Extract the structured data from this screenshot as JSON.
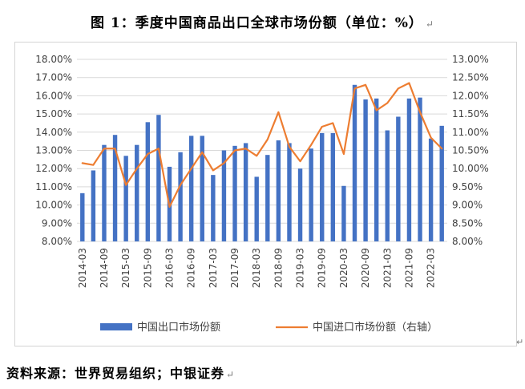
{
  "title": "图 1：季度中国商品出口全球市场份额（单位：%）",
  "source": "资料来源：世界贸易组织；中银证券",
  "edit_mark": "↵",
  "chart_data": {
    "type": "bar+line",
    "categories": [
      "2014-03",
      "2014-06",
      "2014-09",
      "2014-12",
      "2015-03",
      "2015-06",
      "2015-09",
      "2015-12",
      "2016-03",
      "2016-06",
      "2016-09",
      "2016-12",
      "2017-03",
      "2017-06",
      "2017-09",
      "2017-12",
      "2018-03",
      "2018-06",
      "2018-09",
      "2018-12",
      "2019-03",
      "2019-06",
      "2019-09",
      "2019-12",
      "2020-03",
      "2020-06",
      "2020-09",
      "2020-12",
      "2021-03",
      "2021-06",
      "2021-09",
      "2021-12",
      "2022-03",
      "2022-06"
    ],
    "x_tick_labels": [
      "2014-03",
      "2014-09",
      "2015-03",
      "2015-09",
      "2016-03",
      "2016-09",
      "2017-03",
      "2017-09",
      "2018-03",
      "2018-09",
      "2019-03",
      "2019-09",
      "2020-03",
      "2020-09",
      "2021-03",
      "2021-09",
      "2022-03"
    ],
    "series": [
      {
        "name": "中国出口市场份额",
        "type": "bar",
        "axis": "left",
        "color": "#4472C4",
        "values": [
          10.65,
          11.9,
          13.3,
          13.85,
          12.7,
          13.3,
          14.55,
          14.95,
          12.1,
          12.9,
          13.8,
          13.8,
          11.65,
          13.0,
          13.25,
          13.4,
          11.55,
          12.75,
          13.55,
          13.4,
          12.0,
          13.1,
          13.95,
          13.95,
          11.05,
          16.6,
          15.8,
          15.85,
          14.1,
          14.85,
          15.85,
          15.9,
          13.65,
          14.35
        ]
      },
      {
        "name": "中国进口市场份额（右轴）",
        "type": "line",
        "axis": "right",
        "color": "#ED7D31",
        "values": [
          10.15,
          10.1,
          10.55,
          10.55,
          9.55,
          10.0,
          10.4,
          10.55,
          8.95,
          9.55,
          10.0,
          10.45,
          9.95,
          10.15,
          10.5,
          10.55,
          10.35,
          10.8,
          11.55,
          10.6,
          10.2,
          10.65,
          11.15,
          11.25,
          10.4,
          12.2,
          12.3,
          11.6,
          11.8,
          12.2,
          12.35,
          11.55,
          10.85,
          10.55
        ]
      }
    ],
    "y_left": {
      "min": 8,
      "max": 18,
      "step": 1,
      "tick_labels": [
        "8.00%",
        "9.00%",
        "10.00%",
        "11.00%",
        "12.00%",
        "13.00%",
        "14.00%",
        "15.00%",
        "16.00%",
        "17.00%",
        "18.00%"
      ]
    },
    "y_right": {
      "min": 8,
      "max": 13,
      "step": 0.5,
      "tick_labels": [
        "8.00%",
        "8.50%",
        "9.00%",
        "9.50%",
        "10.00%",
        "10.50%",
        "11.00%",
        "11.50%",
        "12.00%",
        "12.50%",
        "13.00%"
      ]
    },
    "grid": true,
    "legend_position": "bottom"
  }
}
